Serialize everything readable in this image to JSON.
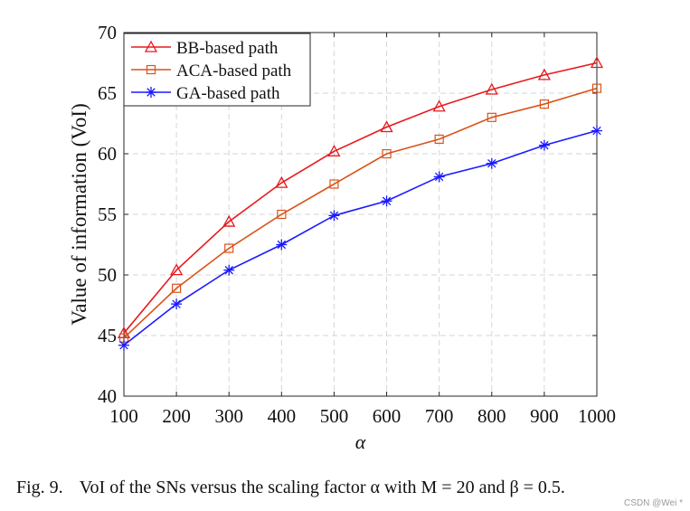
{
  "chart_data": {
    "type": "line",
    "title": "",
    "xlabel": "α",
    "ylabel": "Value of information (VoI)",
    "x": [
      100,
      200,
      300,
      400,
      500,
      600,
      700,
      800,
      900,
      1000
    ],
    "xlim": [
      100,
      1000
    ],
    "ylim": [
      40,
      70
    ],
    "x_ticks": [
      "100",
      "200",
      "300",
      "400",
      "500",
      "600",
      "700",
      "800",
      "900",
      "1000"
    ],
    "y_ticks": [
      "40",
      "45",
      "50",
      "55",
      "60",
      "65",
      "70"
    ],
    "grid": true,
    "legend_position": "top-left",
    "series": [
      {
        "name": "BB-based path",
        "color": "#e8191c",
        "marker": "triangle",
        "values": [
          45.2,
          50.4,
          54.4,
          57.6,
          60.2,
          62.2,
          63.9,
          65.3,
          66.5,
          67.5
        ]
      },
      {
        "name": "ACA-based path",
        "color": "#d95319",
        "marker": "square",
        "values": [
          44.8,
          48.9,
          52.2,
          55.0,
          57.5,
          60.0,
          61.2,
          63.0,
          64.1,
          65.4
        ]
      },
      {
        "name": "GA-based path",
        "color": "#1a1aff",
        "marker": "star",
        "values": [
          44.2,
          47.6,
          50.4,
          52.5,
          54.9,
          56.1,
          58.1,
          59.2,
          60.7,
          61.9
        ]
      }
    ]
  },
  "caption": {
    "label": "Fig. 9.",
    "text": "VoI of the SNs versus the scaling factor α with M = 20 and β = 0.5."
  },
  "watermark": "CSDN @Wei *"
}
